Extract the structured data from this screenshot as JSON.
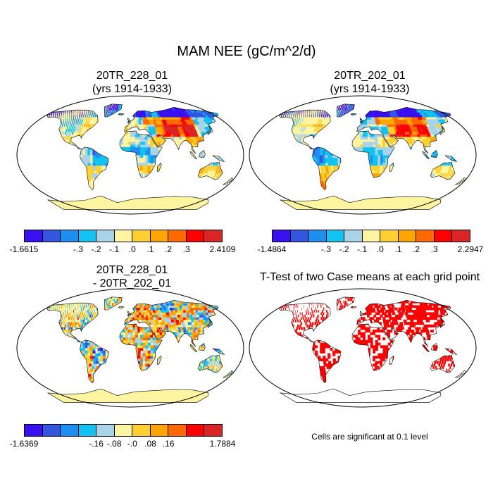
{
  "title": "MAM NEE (gC/m^2/d)",
  "panels": [
    {
      "title_line1": "20TR_228_01",
      "title_line2": "(yrs 1914-1933)"
    },
    {
      "title_line1": "20TR_202_01",
      "title_line2": "(yrs 1914-1933)"
    },
    {
      "title_line1": "20TR_228_01",
      "title_line2": "- 20TR_202_01"
    },
    {
      "title_line1": "T-Test of two Case means at each grid point",
      "title_line2": ""
    }
  ],
  "colorbars": [
    {
      "colors": [
        "#3a10f0",
        "#3455e0",
        "#1e8ff0",
        "#12c3f0",
        "#a9d3e8",
        "#fff5a0",
        "#ffd030",
        "#ffa500",
        "#ff6a00",
        "#ff0000",
        "#d92525"
      ],
      "labels": [
        "-1.6615",
        "-.3",
        "-.2",
        "-.1",
        ".0",
        ".1",
        ".2",
        ".3",
        "2.4109"
      ]
    },
    {
      "colors": [
        "#3a10f0",
        "#3455e0",
        "#1e8ff0",
        "#12c3f0",
        "#a9d3e8",
        "#fff5a0",
        "#ffd030",
        "#ffa500",
        "#ff6a00",
        "#ff0000",
        "#d92525"
      ],
      "labels": [
        "-1.4864",
        "-.3",
        "-.2",
        "-.1",
        ".0",
        ".1",
        ".2",
        ".3",
        "2.2947"
      ]
    },
    {
      "colors": [
        "#3a10f0",
        "#3455e0",
        "#1e8ff0",
        "#12c3f0",
        "#a9d3e8",
        "#fff5a0",
        "#ffd030",
        "#ffa500",
        "#ff6a00",
        "#ff0000",
        "#d92525"
      ],
      "labels": [
        "-1.6369",
        "-.16",
        "-.08",
        "-.0",
        ".08",
        ".16",
        "1.7884"
      ]
    }
  ],
  "note": "Cells are significant at 0.1 level",
  "colors": {
    "land_fill": "#fff5a0",
    "ocean_fill": "#ffffff",
    "significant": "#ff0000",
    "outline": "#000000"
  }
}
